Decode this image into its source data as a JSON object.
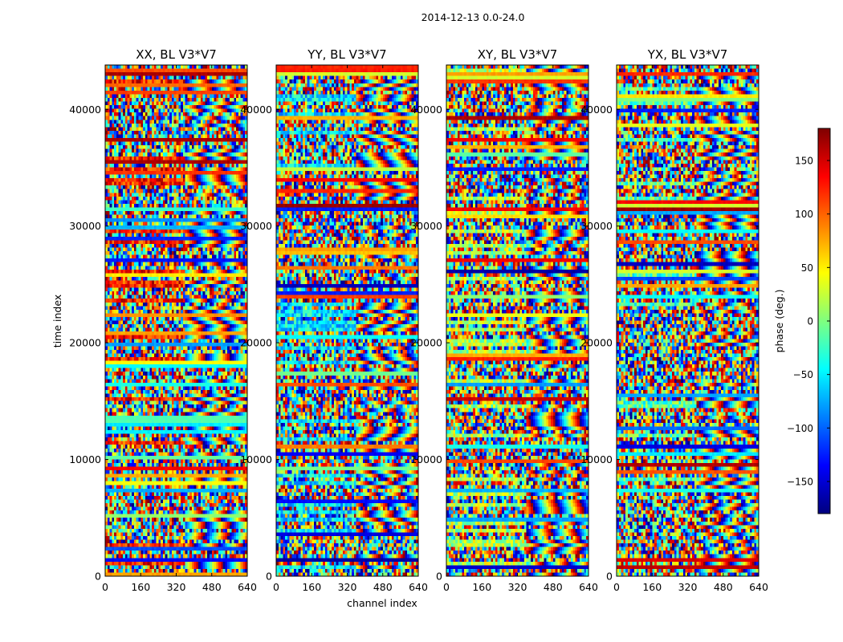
{
  "suptitle": "2014-12-13 0.0-24.0",
  "chart_data": {
    "type": "heatmap",
    "panels": [
      {
        "title": "XX, BL V3*V7"
      },
      {
        "title": "YY, BL V3*V7"
      },
      {
        "title": "XY, BL V3*V7"
      },
      {
        "title": "YX, BL V3*V7"
      }
    ],
    "xlabel": "channel index",
    "ylabel": "time index",
    "xlim": [
      0,
      640
    ],
    "ylim": [
      0,
      43800
    ],
    "xticks": [
      0,
      160,
      320,
      480,
      640
    ],
    "yticks": [
      0,
      10000,
      20000,
      30000,
      40000
    ],
    "colorbar": {
      "label": "phase (deg.)",
      "range": [
        -180,
        180
      ],
      "ticks": [
        -150,
        -100,
        -50,
        0,
        50,
        100,
        150
      ],
      "tick_labels": [
        "−150",
        "−100",
        "−50",
        "0",
        "50",
        "100",
        "150"
      ],
      "colormap": [
        "#00007f",
        "#0000ff",
        "#007fff",
        "#00ffff",
        "#7fff7f",
        "#ffff00",
        "#ff7f00",
        "#ff0000",
        "#7f0000"
      ]
    }
  }
}
